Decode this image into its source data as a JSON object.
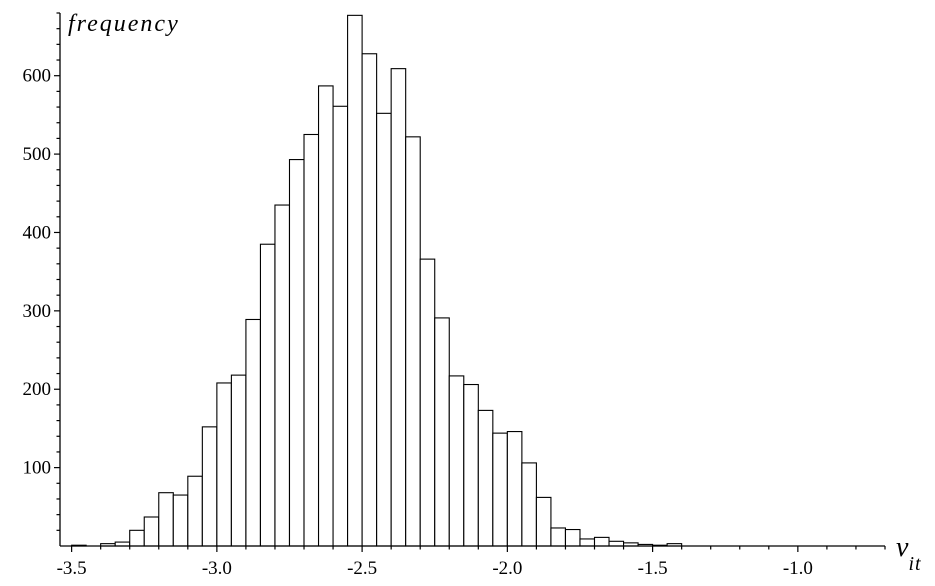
{
  "chart_data": {
    "type": "bar",
    "title": "",
    "xlabel": "v",
    "xlabel_subscript": "it",
    "ylabel": "frequency",
    "bin_start": -3.5,
    "bin_width": 0.05,
    "values": [
      1,
      0,
      3,
      5,
      20,
      37,
      68,
      65,
      89,
      152,
      208,
      218,
      289,
      385,
      435,
      493,
      525,
      587,
      561,
      677,
      628,
      552,
      609,
      522,
      366,
      291,
      217,
      206,
      173,
      144,
      146,
      106,
      62,
      23,
      21,
      9,
      11,
      6,
      4,
      2,
      1,
      3
    ],
    "xlim": [
      -3.54,
      -0.7
    ],
    "ylim": [
      0,
      680
    ],
    "xticks": [
      -3.5,
      -3.0,
      -2.5,
      -2.0,
      -1.5,
      -1.0
    ],
    "xtick_labels": [
      "-3.5",
      "-3.0",
      "-2.5",
      "-2.0",
      "-1.5",
      "-1.0"
    ],
    "yticks": [
      100,
      200,
      300,
      400,
      500,
      600
    ],
    "ytick_labels": [
      "100",
      "200",
      "300",
      "400",
      "500",
      "600"
    ],
    "grid": false,
    "legend": "none"
  }
}
